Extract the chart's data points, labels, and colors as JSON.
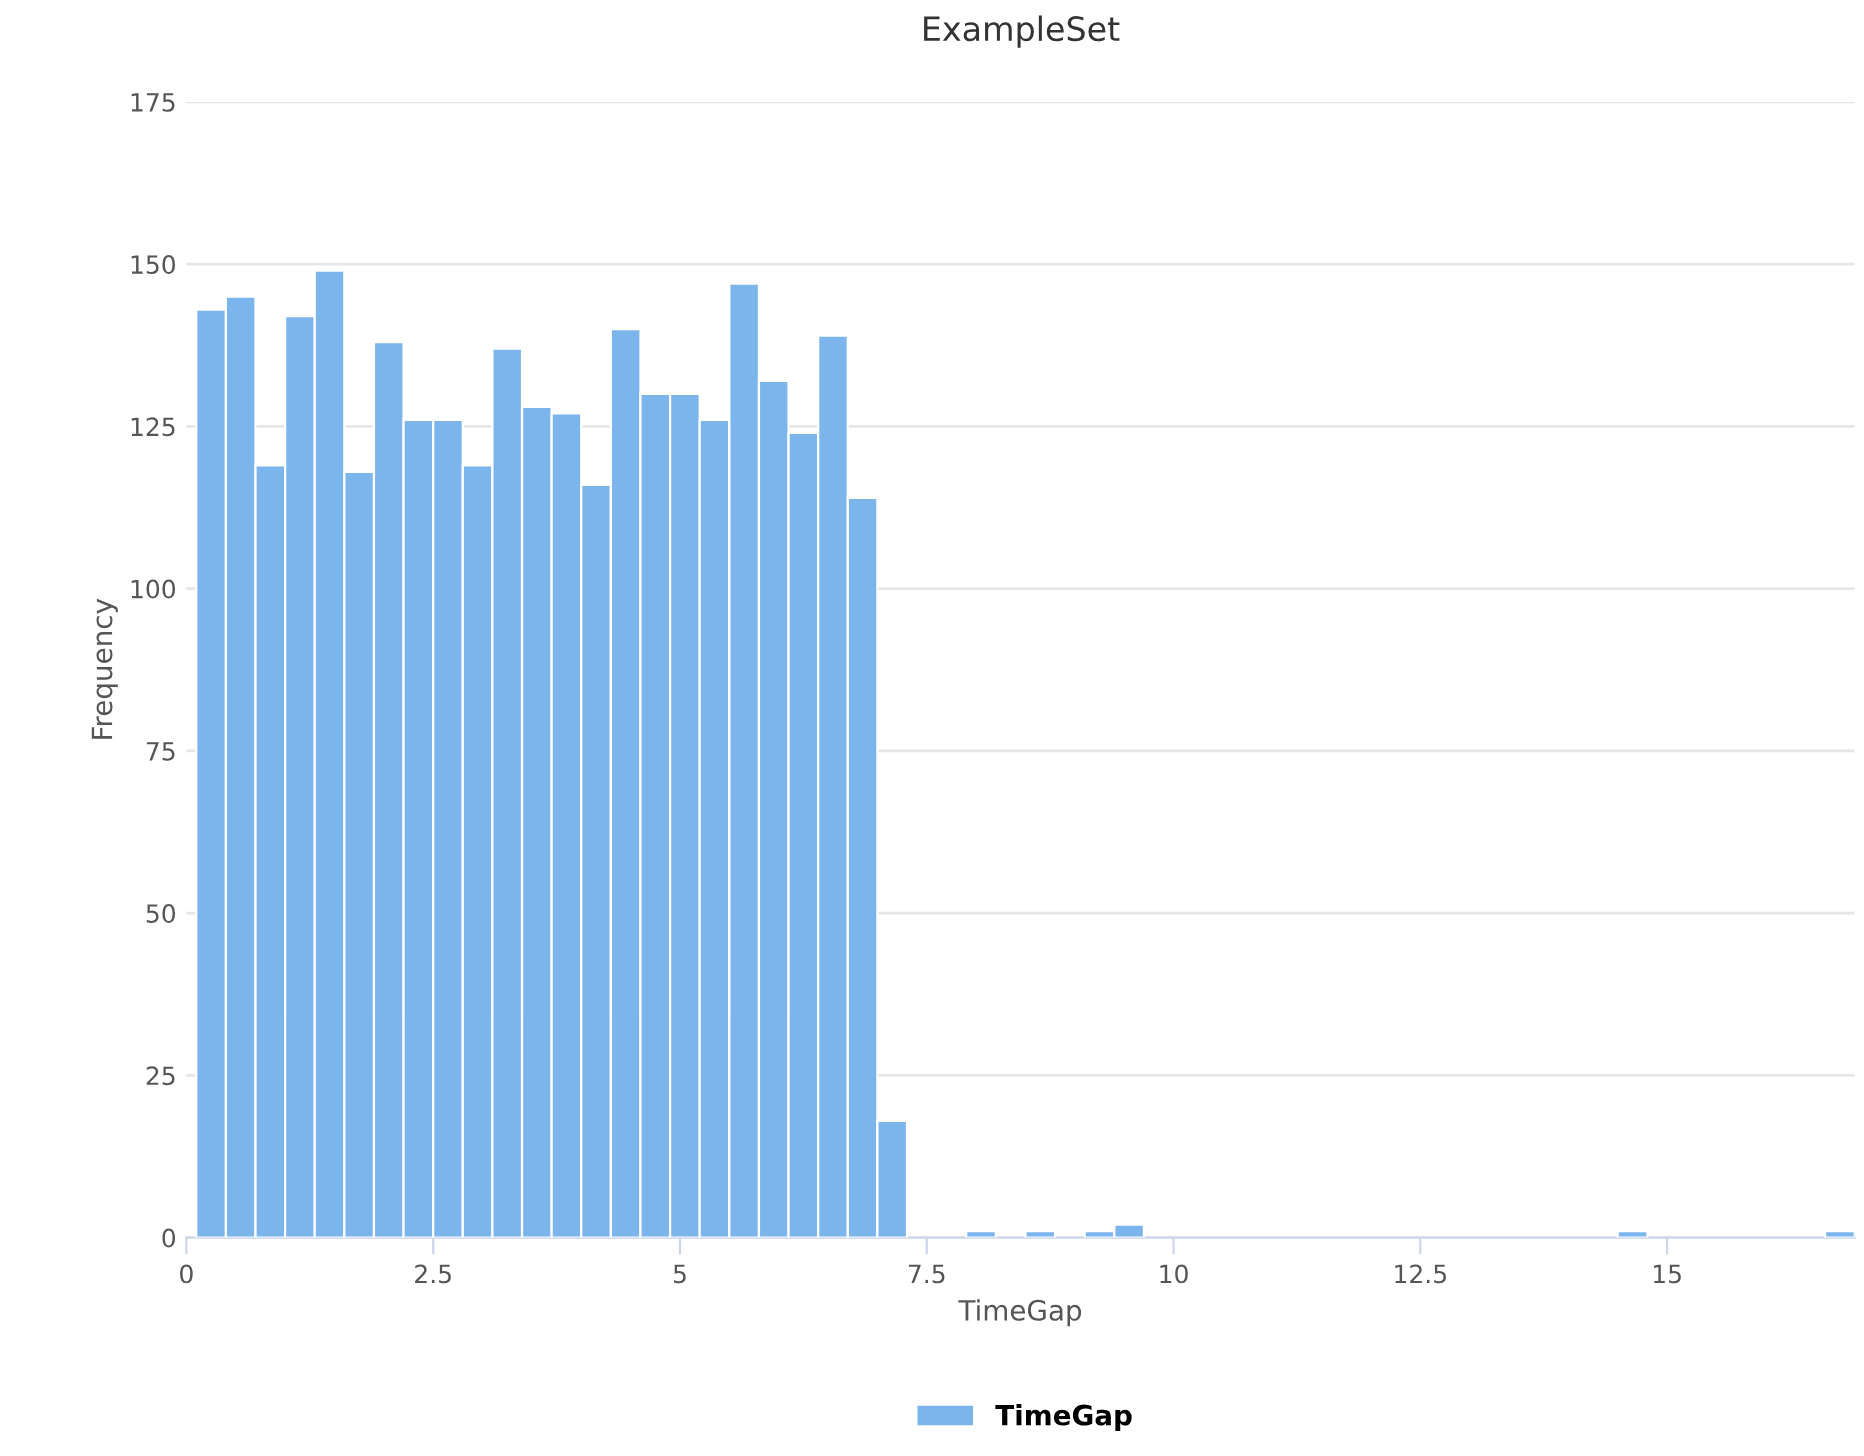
{
  "chart_data": {
    "type": "histogram",
    "title": "ExampleSet",
    "xlabel": "TimeGap",
    "ylabel": "Frequency",
    "bins": [
      0.1,
      0.4,
      0.7,
      1.0,
      1.3,
      1.6,
      1.9,
      2.2,
      2.5,
      2.8,
      3.1,
      3.4,
      3.7,
      4.0,
      4.3,
      4.6,
      4.9,
      5.2,
      5.5,
      5.8,
      6.1,
      6.4,
      6.7,
      7.0,
      7.3,
      7.6,
      7.9,
      8.2,
      8.5,
      8.8,
      9.1,
      9.4,
      9.7,
      10.0,
      10.3,
      10.6,
      10.9,
      11.2,
      11.5,
      11.8,
      12.1,
      12.4,
      12.7,
      13.0,
      13.3,
      13.6,
      13.9,
      14.2,
      14.5,
      14.8,
      15.1,
      15.4,
      15.7,
      16.0,
      16.3,
      16.6,
      16.9
    ],
    "series": [
      {
        "name": "TimeGap",
        "color": "#7cb5ec",
        "values": [
          143,
          145,
          119,
          142,
          149,
          118,
          138,
          126,
          126,
          119,
          137,
          128,
          127,
          116,
          140,
          130,
          130,
          126,
          147,
          132,
          124,
          139,
          114,
          18,
          0,
          0,
          1,
          0,
          1,
          0,
          1,
          2,
          0,
          0,
          0,
          0,
          0,
          0,
          0,
          0,
          0,
          0,
          0,
          0,
          0,
          0,
          0,
          0,
          1,
          0,
          0,
          0,
          0,
          0,
          0,
          1
        ]
      }
    ],
    "xlim": [
      0,
      16.9
    ],
    "xticks": [
      0,
      2.5,
      5,
      7.5,
      10,
      12.5,
      15
    ],
    "ylim": [
      0,
      175
    ],
    "yticks": [
      0,
      25,
      50,
      75,
      100,
      125,
      150,
      175
    ],
    "grid": "y",
    "legend": "bottom"
  }
}
